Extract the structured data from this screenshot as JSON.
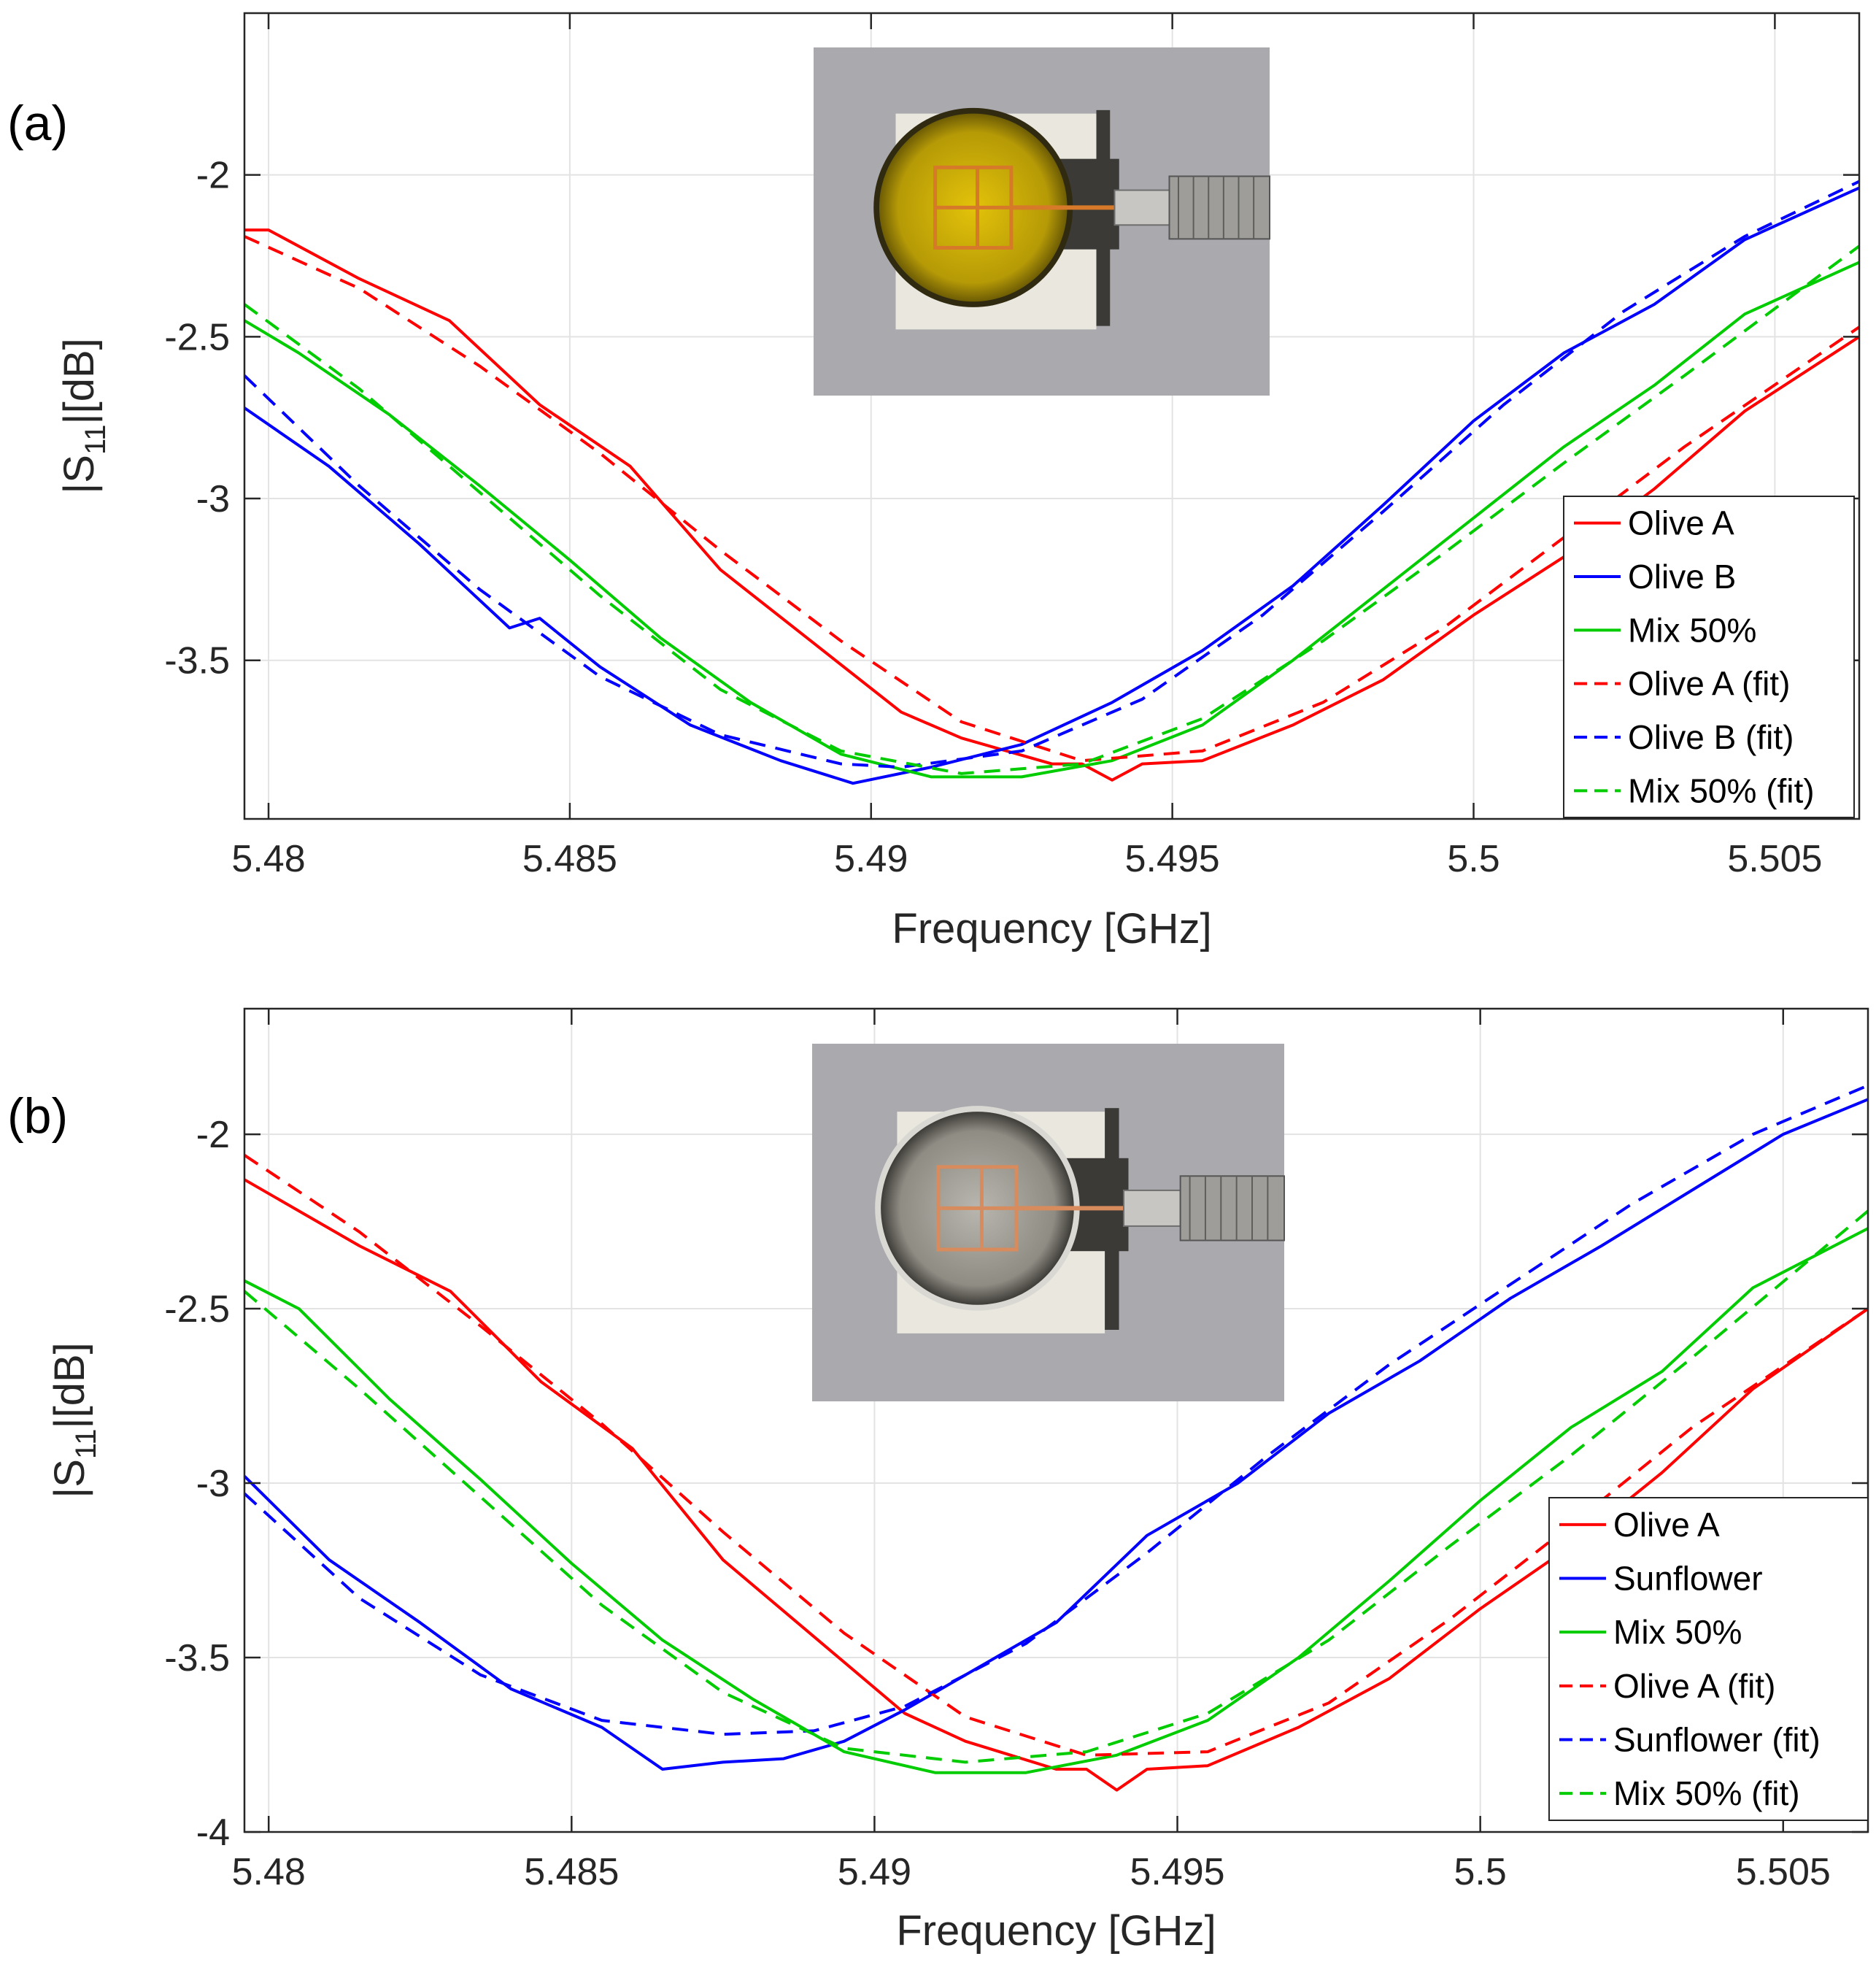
{
  "chart_data": [
    {
      "panel_label": "(a)",
      "type": "line",
      "xlabel": "Frequency [GHz]",
      "ylabel_main": "|S",
      "ylabel_sub": "11",
      "ylabel_rest": "|[dB]",
      "xlim": [
        5.4796,
        5.5064
      ],
      "ylim": [
        -3.99,
        -1.5
      ],
      "xticks": [
        5.48,
        5.485,
        5.49,
        5.495,
        5.5,
        5.505
      ],
      "xtick_labels": [
        "5.48",
        "5.485",
        "5.49",
        "5.495",
        "5.5",
        "5.505"
      ],
      "yticks": [
        -3.5,
        -3,
        -2.5,
        -2
      ],
      "ytick_labels": [
        "-3.5",
        "-3",
        "-2.5",
        "-2"
      ],
      "grid": true,
      "legend_position": "right",
      "inset_photo": "Sensor photo: yellow oil sample in dish over split-ring resonator",
      "inset_theme": "olive",
      "series": [
        {
          "name": "Olive A",
          "color": "#ff0000",
          "dash": "solid",
          "x": [
            5.4796,
            5.48,
            5.4815,
            5.483,
            5.4845,
            5.486,
            5.4875,
            5.489,
            5.4905,
            5.4915,
            5.493,
            5.4935,
            5.494,
            5.4945,
            5.4955,
            5.497,
            5.4985,
            5.5,
            5.5015,
            5.503,
            5.5045,
            5.5064
          ],
          "y": [
            -2.17,
            -2.17,
            -2.32,
            -2.45,
            -2.71,
            -2.9,
            -3.22,
            -3.44,
            -3.66,
            -3.74,
            -3.82,
            -3.82,
            -3.87,
            -3.82,
            -3.81,
            -3.7,
            -3.56,
            -3.36,
            -3.18,
            -2.97,
            -2.73,
            -2.5
          ]
        },
        {
          "name": "Olive B",
          "color": "#0000ff",
          "dash": "solid",
          "x": [
            5.4796,
            5.481,
            5.4825,
            5.484,
            5.4845,
            5.4855,
            5.487,
            5.4885,
            5.4897,
            5.491,
            5.4925,
            5.494,
            5.4955,
            5.497,
            5.4985,
            5.5,
            5.5015,
            5.503,
            5.5045,
            5.5064
          ],
          "y": [
            -2.72,
            -2.9,
            -3.14,
            -3.4,
            -3.37,
            -3.52,
            -3.7,
            -3.81,
            -3.88,
            -3.83,
            -3.76,
            -3.63,
            -3.47,
            -3.27,
            -3.02,
            -2.76,
            -2.55,
            -2.4,
            -2.2,
            -2.04
          ]
        },
        {
          "name": "Mix 50%",
          "color": "#00cc00",
          "dash": "solid",
          "x": [
            5.4796,
            5.4805,
            5.482,
            5.4835,
            5.485,
            5.4865,
            5.488,
            5.4895,
            5.491,
            5.4925,
            5.494,
            5.4955,
            5.497,
            5.4985,
            5.5,
            5.5015,
            5.503,
            5.5045,
            5.5064
          ],
          "y": [
            -2.45,
            -2.55,
            -2.74,
            -2.96,
            -3.19,
            -3.43,
            -3.63,
            -3.79,
            -3.86,
            -3.86,
            -3.81,
            -3.7,
            -3.5,
            -3.28,
            -3.06,
            -2.84,
            -2.65,
            -2.43,
            -2.27
          ]
        },
        {
          "name": "Olive A (fit)",
          "color": "#ff0000",
          "dash": "dashed",
          "x": [
            5.4796,
            5.4815,
            5.4835,
            5.4855,
            5.4875,
            5.4895,
            5.4915,
            5.4935,
            5.4955,
            5.4975,
            5.4995,
            5.5015,
            5.5035,
            5.5064
          ],
          "y": [
            -2.19,
            -2.35,
            -2.59,
            -2.86,
            -3.16,
            -3.44,
            -3.69,
            -3.81,
            -3.78,
            -3.63,
            -3.4,
            -3.12,
            -2.84,
            -2.47
          ]
        },
        {
          "name": "Olive B (fit)",
          "color": "#0000ff",
          "dash": "dashed",
          "x": [
            5.4796,
            5.4815,
            5.4835,
            5.4855,
            5.4875,
            5.4895,
            5.4905,
            5.4925,
            5.4945,
            5.4965,
            5.4985,
            5.5005,
            5.5025,
            5.5045,
            5.5064
          ],
          "y": [
            -2.62,
            -2.96,
            -3.28,
            -3.55,
            -3.73,
            -3.82,
            -3.83,
            -3.78,
            -3.62,
            -3.36,
            -3.04,
            -2.71,
            -2.42,
            -2.19,
            -2.02
          ]
        },
        {
          "name": "Mix 50% (fit)",
          "color": "#00cc00",
          "dash": "dashed",
          "x": [
            5.4796,
            5.4815,
            5.4835,
            5.4855,
            5.4875,
            5.4895,
            5.4915,
            5.4935,
            5.4955,
            5.4975,
            5.4995,
            5.5015,
            5.5035,
            5.5064
          ],
          "y": [
            -2.4,
            -2.66,
            -2.98,
            -3.3,
            -3.59,
            -3.78,
            -3.85,
            -3.82,
            -3.68,
            -3.44,
            -3.17,
            -2.89,
            -2.62,
            -2.22
          ]
        }
      ]
    },
    {
      "panel_label": "(b)",
      "type": "line",
      "xlabel": "Frequency [GHz]",
      "ylabel_main": "|S",
      "ylabel_sub": "11",
      "ylabel_rest": "|[dB]",
      "xlim": [
        5.4796,
        5.5064
      ],
      "ylim": [
        -4.0,
        -1.64
      ],
      "xticks": [
        5.48,
        5.485,
        5.49,
        5.495,
        5.5,
        5.505
      ],
      "xtick_labels": [
        "5.48",
        "5.485",
        "5.49",
        "5.495",
        "5.5",
        "5.505"
      ],
      "yticks": [
        -4,
        -3.5,
        -3,
        -2.5,
        -2
      ],
      "ytick_labels": [
        "-4",
        "-3.5",
        "-3",
        "-2.5",
        "-2"
      ],
      "grid": true,
      "legend_position": "bottom-right",
      "inset_photo": "Sensor photo: clear oil sample in dish over split-ring resonator",
      "inset_theme": "sunflower",
      "series": [
        {
          "name": "Olive A",
          "color": "#ff0000",
          "dash": "solid",
          "x": [
            5.4796,
            5.48,
            5.4815,
            5.483,
            5.4845,
            5.486,
            5.4875,
            5.489,
            5.4905,
            5.4915,
            5.493,
            5.4935,
            5.494,
            5.4945,
            5.4955,
            5.497,
            5.4985,
            5.5,
            5.5015,
            5.503,
            5.5045,
            5.5064
          ],
          "y": [
            -2.13,
            -2.17,
            -2.32,
            -2.45,
            -2.71,
            -2.9,
            -3.22,
            -3.44,
            -3.66,
            -3.74,
            -3.82,
            -3.82,
            -3.88,
            -3.82,
            -3.81,
            -3.7,
            -3.56,
            -3.36,
            -3.18,
            -2.97,
            -2.73,
            -2.5
          ]
        },
        {
          "name": "Sunflower",
          "color": "#0000ff",
          "dash": "solid",
          "x": [
            5.4796,
            5.481,
            5.4825,
            5.484,
            5.4855,
            5.4865,
            5.4875,
            5.4885,
            5.4895,
            5.4905,
            5.4915,
            5.493,
            5.4945,
            5.496,
            5.4975,
            5.499,
            5.5005,
            5.502,
            5.5035,
            5.505,
            5.5064
          ],
          "y": [
            -2.98,
            -3.22,
            -3.4,
            -3.59,
            -3.7,
            -3.82,
            -3.8,
            -3.79,
            -3.74,
            -3.65,
            -3.55,
            -3.4,
            -3.15,
            -3.0,
            -2.8,
            -2.65,
            -2.47,
            -2.32,
            -2.16,
            -2.0,
            -1.9
          ]
        },
        {
          "name": "Mix 50%",
          "color": "#00cc00",
          "dash": "solid",
          "x": [
            5.4796,
            5.4805,
            5.482,
            5.4835,
            5.485,
            5.4865,
            5.488,
            5.4895,
            5.491,
            5.4925,
            5.494,
            5.4955,
            5.497,
            5.4985,
            5.5,
            5.5015,
            5.503,
            5.5045,
            5.5064
          ],
          "y": [
            -2.42,
            -2.5,
            -2.76,
            -2.99,
            -3.23,
            -3.45,
            -3.62,
            -3.77,
            -3.83,
            -3.83,
            -3.78,
            -3.68,
            -3.5,
            -3.28,
            -3.05,
            -2.84,
            -2.68,
            -2.44,
            -2.27
          ]
        },
        {
          "name": "Olive A (fit)",
          "color": "#ff0000",
          "dash": "dashed",
          "x": [
            5.4796,
            5.4815,
            5.4835,
            5.4855,
            5.4875,
            5.4895,
            5.4915,
            5.4935,
            5.4955,
            5.4975,
            5.4995,
            5.5015,
            5.5035,
            5.5064
          ],
          "y": [
            -2.06,
            -2.28,
            -2.55,
            -2.83,
            -3.14,
            -3.43,
            -3.67,
            -3.78,
            -3.77,
            -3.63,
            -3.39,
            -3.12,
            -2.84,
            -2.5
          ]
        },
        {
          "name": "Sunflower (fit)",
          "color": "#0000ff",
          "dash": "dashed",
          "x": [
            5.4796,
            5.4815,
            5.4835,
            5.4855,
            5.4875,
            5.489,
            5.4905,
            5.4925,
            5.4945,
            5.4965,
            5.4985,
            5.5005,
            5.5025,
            5.5045,
            5.5064
          ],
          "y": [
            -3.03,
            -3.33,
            -3.55,
            -3.68,
            -3.72,
            -3.71,
            -3.64,
            -3.46,
            -3.2,
            -2.92,
            -2.66,
            -2.43,
            -2.2,
            -2.0,
            -1.86
          ]
        },
        {
          "name": "Mix 50% (fit)",
          "color": "#00cc00",
          "dash": "dashed",
          "x": [
            5.4796,
            5.4815,
            5.4835,
            5.4855,
            5.4875,
            5.4895,
            5.4915,
            5.4935,
            5.4955,
            5.4975,
            5.4995,
            5.5015,
            5.5035,
            5.5064
          ],
          "y": [
            -2.45,
            -2.73,
            -3.04,
            -3.35,
            -3.6,
            -3.76,
            -3.8,
            -3.77,
            -3.66,
            -3.45,
            -3.18,
            -2.92,
            -2.64,
            -2.22
          ]
        }
      ]
    }
  ]
}
